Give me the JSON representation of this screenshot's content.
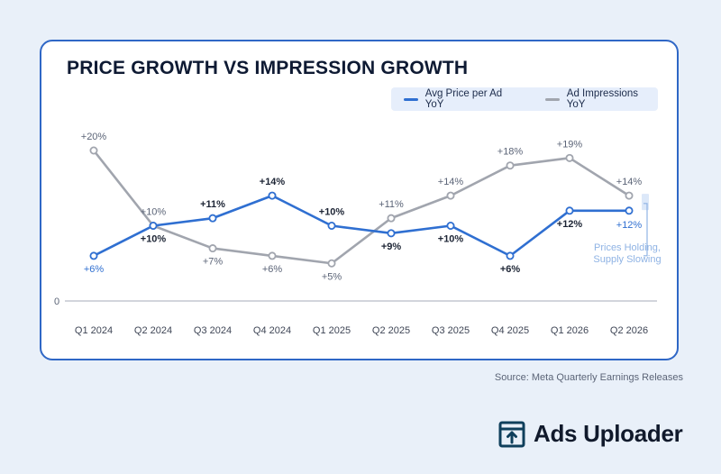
{
  "chart_data": {
    "type": "line",
    "title": "PRICE GROWTH VS IMPRESSION GROWTH",
    "categories": [
      "Q1 2024",
      "Q2 2024",
      "Q3 2024",
      "Q4 2024",
      "Q1 2025",
      "Q2 2025",
      "Q3 2025",
      "Q4 2025",
      "Q1 2026",
      "Q2 2026"
    ],
    "series": [
      {
        "name": "Avg Price per Ad YoY",
        "color": "#2f6fd1",
        "values": [
          6,
          10,
          11,
          14,
          10,
          9,
          10,
          6,
          12,
          12
        ],
        "labels": [
          "+6%",
          "+10%",
          "+11%",
          "+14%",
          "+10%",
          "+9%",
          "+10%",
          "+6%",
          "+12%",
          "+12%"
        ]
      },
      {
        "name": "Ad Impressions YoY",
        "color": "#a1a5ae",
        "values": [
          20,
          10,
          7,
          6,
          5,
          11,
          14,
          18,
          19,
          14
        ],
        "labels": [
          "+20%",
          "+10%",
          "+7%",
          "+6%",
          "+5%",
          "+11%",
          "+14%",
          "+18%",
          "+19%",
          "+14%"
        ]
      }
    ],
    "y_tick_label": "0",
    "ylim": [
      0,
      20
    ],
    "grid": false,
    "legend_position": "top-right",
    "annotation": {
      "lines": [
        "Prices Holding,",
        "Supply Slowing"
      ],
      "color": "#8fb3e4"
    }
  },
  "source": "Source: Meta Quarterly Earnings Releases",
  "brand": {
    "name": "Ads Uploader",
    "icon": "upload-box-icon",
    "color": "#0f3f5c"
  }
}
